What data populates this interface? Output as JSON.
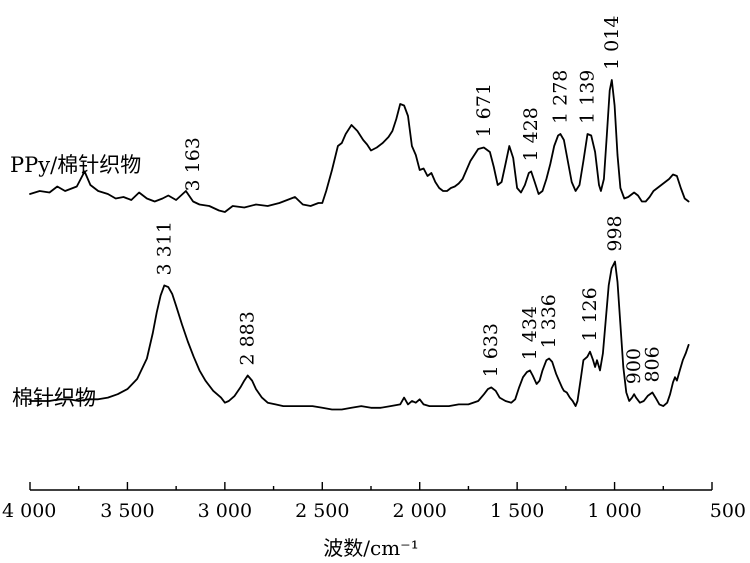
{
  "chart_data": {
    "type": "line",
    "xlabel": "波数/cm⁻¹",
    "ylabel": "",
    "xlim": [
      4000,
      500
    ],
    "x_reversed": true,
    "x_ticks": [
      {
        "value": 4000,
        "label": "4 000"
      },
      {
        "value": 3500,
        "label": "3 500"
      },
      {
        "value": 3000,
        "label": "3 000"
      },
      {
        "value": 2500,
        "label": "2 500"
      },
      {
        "value": 2000,
        "label": "2 000"
      },
      {
        "value": 1500,
        "label": "1 500"
      },
      {
        "value": 1000,
        "label": "1 000"
      },
      {
        "value": 500,
        "label": "500"
      }
    ],
    "grid": false,
    "series": [
      {
        "name": "PPy/棉针织物",
        "offset": 1.0,
        "points": [
          [
            4000,
            0.16
          ],
          [
            3950,
            0.18
          ],
          [
            3900,
            0.17
          ],
          [
            3860,
            0.21
          ],
          [
            3820,
            0.18
          ],
          [
            3760,
            0.21
          ],
          [
            3720,
            0.31
          ],
          [
            3690,
            0.22
          ],
          [
            3650,
            0.18
          ],
          [
            3600,
            0.16
          ],
          [
            3560,
            0.13
          ],
          [
            3520,
            0.14
          ],
          [
            3480,
            0.12
          ],
          [
            3440,
            0.17
          ],
          [
            3400,
            0.13
          ],
          [
            3360,
            0.11
          ],
          [
            3320,
            0.13
          ],
          [
            3290,
            0.15
          ],
          [
            3250,
            0.12
          ],
          [
            3200,
            0.18
          ],
          [
            3163,
            0.11
          ],
          [
            3130,
            0.09
          ],
          [
            3080,
            0.08
          ],
          [
            3030,
            0.05
          ],
          [
            3000,
            0.04
          ],
          [
            2960,
            0.08
          ],
          [
            2900,
            0.07
          ],
          [
            2840,
            0.09
          ],
          [
            2780,
            0.08
          ],
          [
            2720,
            0.1
          ],
          [
            2680,
            0.12
          ],
          [
            2640,
            0.14
          ],
          [
            2600,
            0.09
          ],
          [
            2560,
            0.08
          ],
          [
            2520,
            0.1
          ],
          [
            2500,
            0.1
          ],
          [
            2480,
            0.18
          ],
          [
            2450,
            0.32
          ],
          [
            2420,
            0.48
          ],
          [
            2400,
            0.5
          ],
          [
            2380,
            0.56
          ],
          [
            2350,
            0.62
          ],
          [
            2320,
            0.58
          ],
          [
            2290,
            0.52
          ],
          [
            2270,
            0.49
          ],
          [
            2250,
            0.45
          ],
          [
            2220,
            0.47
          ],
          [
            2190,
            0.5
          ],
          [
            2160,
            0.54
          ],
          [
            2140,
            0.58
          ],
          [
            2120,
            0.66
          ],
          [
            2100,
            0.76
          ],
          [
            2080,
            0.75
          ],
          [
            2060,
            0.68
          ],
          [
            2040,
            0.48
          ],
          [
            2020,
            0.42
          ],
          [
            2000,
            0.32
          ],
          [
            1980,
            0.33
          ],
          [
            1960,
            0.28
          ],
          [
            1940,
            0.3
          ],
          [
            1920,
            0.24
          ],
          [
            1900,
            0.2
          ],
          [
            1880,
            0.18
          ],
          [
            1860,
            0.18
          ],
          [
            1840,
            0.2
          ],
          [
            1820,
            0.21
          ],
          [
            1800,
            0.23
          ],
          [
            1780,
            0.26
          ],
          [
            1760,
            0.32
          ],
          [
            1740,
            0.38
          ],
          [
            1720,
            0.42
          ],
          [
            1700,
            0.46
          ],
          [
            1671,
            0.47
          ],
          [
            1640,
            0.44
          ],
          [
            1620,
            0.34
          ],
          [
            1600,
            0.22
          ],
          [
            1580,
            0.24
          ],
          [
            1560,
            0.36
          ],
          [
            1540,
            0.48
          ],
          [
            1520,
            0.4
          ],
          [
            1500,
            0.2
          ],
          [
            1480,
            0.17
          ],
          [
            1460,
            0.22
          ],
          [
            1440,
            0.3
          ],
          [
            1428,
            0.31
          ],
          [
            1410,
            0.24
          ],
          [
            1390,
            0.16
          ],
          [
            1370,
            0.18
          ],
          [
            1350,
            0.26
          ],
          [
            1330,
            0.36
          ],
          [
            1310,
            0.48
          ],
          [
            1290,
            0.55
          ],
          [
            1278,
            0.56
          ],
          [
            1260,
            0.52
          ],
          [
            1240,
            0.38
          ],
          [
            1220,
            0.24
          ],
          [
            1200,
            0.18
          ],
          [
            1180,
            0.22
          ],
          [
            1160,
            0.38
          ],
          [
            1139,
            0.56
          ],
          [
            1120,
            0.55
          ],
          [
            1100,
            0.44
          ],
          [
            1080,
            0.22
          ],
          [
            1070,
            0.18
          ],
          [
            1055,
            0.26
          ],
          [
            1040,
            0.55
          ],
          [
            1025,
            0.85
          ],
          [
            1014,
            0.92
          ],
          [
            1000,
            0.75
          ],
          [
            985,
            0.42
          ],
          [
            970,
            0.2
          ],
          [
            950,
            0.13
          ],
          [
            930,
            0.14
          ],
          [
            900,
            0.17
          ],
          [
            880,
            0.15
          ],
          [
            860,
            0.11
          ],
          [
            840,
            0.11
          ],
          [
            820,
            0.14
          ],
          [
            800,
            0.18
          ],
          [
            780,
            0.2
          ],
          [
            760,
            0.22
          ],
          [
            740,
            0.24
          ],
          [
            720,
            0.26
          ],
          [
            700,
            0.29
          ],
          [
            680,
            0.28
          ],
          [
            660,
            0.2
          ],
          [
            640,
            0.13
          ],
          [
            620,
            0.11
          ]
        ]
      },
      {
        "name": "棉针织物",
        "offset": 0.0,
        "points": [
          [
            4000,
            0.1
          ],
          [
            3950,
            0.1
          ],
          [
            3900,
            0.1
          ],
          [
            3850,
            0.11
          ],
          [
            3800,
            0.11
          ],
          [
            3750,
            0.1
          ],
          [
            3700,
            0.11
          ],
          [
            3650,
            0.11
          ],
          [
            3600,
            0.12
          ],
          [
            3550,
            0.14
          ],
          [
            3500,
            0.17
          ],
          [
            3450,
            0.23
          ],
          [
            3400,
            0.35
          ],
          [
            3370,
            0.5
          ],
          [
            3350,
            0.62
          ],
          [
            3330,
            0.72
          ],
          [
            3311,
            0.78
          ],
          [
            3290,
            0.77
          ],
          [
            3270,
            0.73
          ],
          [
            3250,
            0.66
          ],
          [
            3220,
            0.55
          ],
          [
            3190,
            0.45
          ],
          [
            3160,
            0.36
          ],
          [
            3130,
            0.28
          ],
          [
            3100,
            0.22
          ],
          [
            3060,
            0.16
          ],
          [
            3020,
            0.12
          ],
          [
            3000,
            0.09
          ],
          [
            2980,
            0.1
          ],
          [
            2950,
            0.13
          ],
          [
            2920,
            0.18
          ],
          [
            2900,
            0.22
          ],
          [
            2883,
            0.25
          ],
          [
            2860,
            0.22
          ],
          [
            2840,
            0.17
          ],
          [
            2810,
            0.12
          ],
          [
            2780,
            0.09
          ],
          [
            2740,
            0.08
          ],
          [
            2700,
            0.07
          ],
          [
            2650,
            0.07
          ],
          [
            2600,
            0.07
          ],
          [
            2550,
            0.07
          ],
          [
            2500,
            0.06
          ],
          [
            2450,
            0.05
          ],
          [
            2400,
            0.05
          ],
          [
            2350,
            0.06
          ],
          [
            2300,
            0.07
          ],
          [
            2250,
            0.06
          ],
          [
            2200,
            0.06
          ],
          [
            2150,
            0.07
          ],
          [
            2100,
            0.08
          ],
          [
            2080,
            0.12
          ],
          [
            2060,
            0.08
          ],
          [
            2040,
            0.1
          ],
          [
            2020,
            0.09
          ],
          [
            2000,
            0.11
          ],
          [
            1980,
            0.08
          ],
          [
            1950,
            0.07
          ],
          [
            1900,
            0.07
          ],
          [
            1850,
            0.07
          ],
          [
            1800,
            0.08
          ],
          [
            1750,
            0.08
          ],
          [
            1700,
            0.1
          ],
          [
            1670,
            0.14
          ],
          [
            1650,
            0.17
          ],
          [
            1633,
            0.18
          ],
          [
            1610,
            0.16
          ],
          [
            1590,
            0.12
          ],
          [
            1560,
            0.1
          ],
          [
            1530,
            0.09
          ],
          [
            1510,
            0.11
          ],
          [
            1490,
            0.18
          ],
          [
            1470,
            0.24
          ],
          [
            1450,
            0.27
          ],
          [
            1434,
            0.28
          ],
          [
            1420,
            0.25
          ],
          [
            1400,
            0.2
          ],
          [
            1385,
            0.22
          ],
          [
            1370,
            0.28
          ],
          [
            1350,
            0.34
          ],
          [
            1336,
            0.35
          ],
          [
            1320,
            0.33
          ],
          [
            1300,
            0.26
          ],
          [
            1285,
            0.22
          ],
          [
            1270,
            0.18
          ],
          [
            1260,
            0.16
          ],
          [
            1245,
            0.15
          ],
          [
            1230,
            0.12
          ],
          [
            1215,
            0.1
          ],
          [
            1200,
            0.07
          ],
          [
            1190,
            0.1
          ],
          [
            1175,
            0.22
          ],
          [
            1160,
            0.34
          ],
          [
            1140,
            0.36
          ],
          [
            1126,
            0.39
          ],
          [
            1110,
            0.34
          ],
          [
            1100,
            0.3
          ],
          [
            1090,
            0.34
          ],
          [
            1075,
            0.28
          ],
          [
            1060,
            0.38
          ],
          [
            1045,
            0.58
          ],
          [
            1030,
            0.78
          ],
          [
            1015,
            0.88
          ],
          [
            998,
            0.92
          ],
          [
            985,
            0.8
          ],
          [
            970,
            0.55
          ],
          [
            955,
            0.3
          ],
          [
            940,
            0.15
          ],
          [
            925,
            0.1
          ],
          [
            910,
            0.12
          ],
          [
            900,
            0.14
          ],
          [
            890,
            0.12
          ],
          [
            870,
            0.09
          ],
          [
            850,
            0.1
          ],
          [
            830,
            0.13
          ],
          [
            806,
            0.15
          ],
          [
            790,
            0.12
          ],
          [
            770,
            0.08
          ],
          [
            750,
            0.07
          ],
          [
            730,
            0.09
          ],
          [
            715,
            0.14
          ],
          [
            700,
            0.21
          ],
          [
            690,
            0.24
          ],
          [
            680,
            0.22
          ],
          [
            665,
            0.28
          ],
          [
            650,
            0.34
          ],
          [
            635,
            0.38
          ],
          [
            620,
            0.43
          ]
        ]
      }
    ],
    "annotations": [
      {
        "series": 0,
        "x": 3163,
        "text": "3 163"
      },
      {
        "series": 0,
        "x": 1671,
        "text": "1 671"
      },
      {
        "series": 0,
        "x": 1428,
        "text": "1 428"
      },
      {
        "series": 0,
        "x": 1278,
        "text": "1 278"
      },
      {
        "series": 0,
        "x": 1139,
        "text": "1 139"
      },
      {
        "series": 0,
        "x": 1014,
        "text": "1 014"
      },
      {
        "series": 1,
        "x": 3311,
        "text": "3 311"
      },
      {
        "series": 1,
        "x": 2883,
        "text": "2 883"
      },
      {
        "series": 1,
        "x": 1633,
        "text": "1 633"
      },
      {
        "series": 1,
        "x": 1434,
        "text": "1 434"
      },
      {
        "series": 1,
        "x": 1336,
        "text": "1 336"
      },
      {
        "series": 1,
        "x": 1126,
        "text": "1 126"
      },
      {
        "series": 1,
        "x": 998,
        "text": "998"
      },
      {
        "series": 1,
        "x": 900,
        "text": "900"
      },
      {
        "series": 1,
        "x": 806,
        "text": "806"
      }
    ]
  }
}
